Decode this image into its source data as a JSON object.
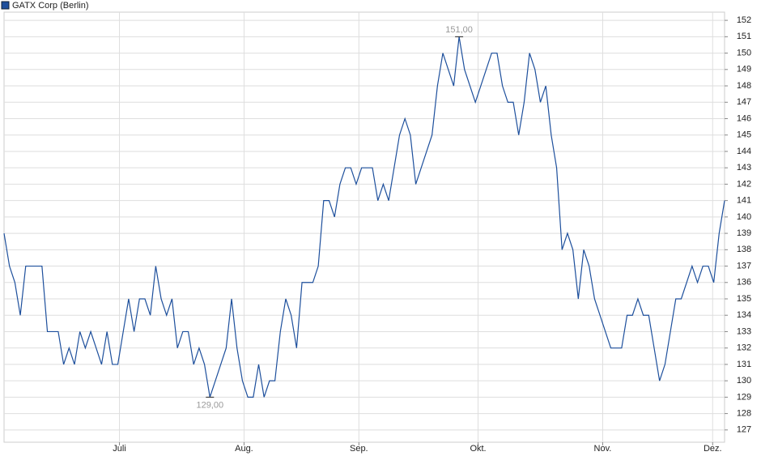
{
  "chart_data": {
    "type": "line",
    "series": [
      {
        "name": "GATX Corp (Berlin)",
        "color": "#1d4f9c",
        "values": [
          139,
          137,
          136,
          134,
          137,
          137,
          137,
          137,
          133,
          133,
          133,
          131,
          132,
          131,
          133,
          132,
          133,
          132,
          131,
          133,
          131,
          131,
          133,
          135,
          133,
          135,
          135,
          134,
          137,
          135,
          134,
          135,
          132,
          133,
          133,
          131,
          132,
          131,
          129,
          130,
          131,
          132,
          135,
          132,
          130,
          129,
          129,
          131,
          129,
          130,
          130,
          133,
          135,
          134,
          132,
          136,
          136,
          136,
          137,
          141,
          141,
          140,
          142,
          143,
          143,
          142,
          143,
          143,
          143,
          141,
          142,
          141,
          143,
          145,
          146,
          145,
          142,
          143,
          144,
          145,
          148,
          150,
          149,
          148,
          151,
          149,
          148,
          147,
          148,
          149,
          150,
          150,
          148,
          147,
          147,
          145,
          147,
          150,
          149,
          147,
          148,
          145,
          143,
          138,
          139,
          138,
          135,
          138,
          137,
          135,
          134,
          133,
          132,
          132,
          132,
          134,
          134,
          135,
          134,
          134,
          132,
          130,
          131,
          133,
          135,
          135,
          136,
          137,
          136,
          137,
          137,
          136,
          139,
          141
        ]
      }
    ],
    "annotations": [
      {
        "label": "151,00",
        "value": 151
      },
      {
        "label": "129,00",
        "value": 129
      }
    ],
    "xticks": [
      {
        "value": 21.3,
        "label": "Juli"
      },
      {
        "value": 44.3,
        "label": "Aug."
      },
      {
        "value": 65.5,
        "label": "Sep."
      },
      {
        "value": 87.5,
        "label": "Okt."
      },
      {
        "value": 110.5,
        "label": "Nov."
      },
      {
        "value": 130.8,
        "label": "Dez."
      }
    ],
    "ylim": [
      126.25,
      152.5
    ],
    "yticks": [
      127,
      128,
      129,
      130,
      131,
      132,
      133,
      134,
      135,
      136,
      137,
      138,
      139,
      140,
      141,
      142,
      143,
      144,
      145,
      146,
      147,
      148,
      149,
      150,
      151,
      152
    ],
    "grid": true
  }
}
